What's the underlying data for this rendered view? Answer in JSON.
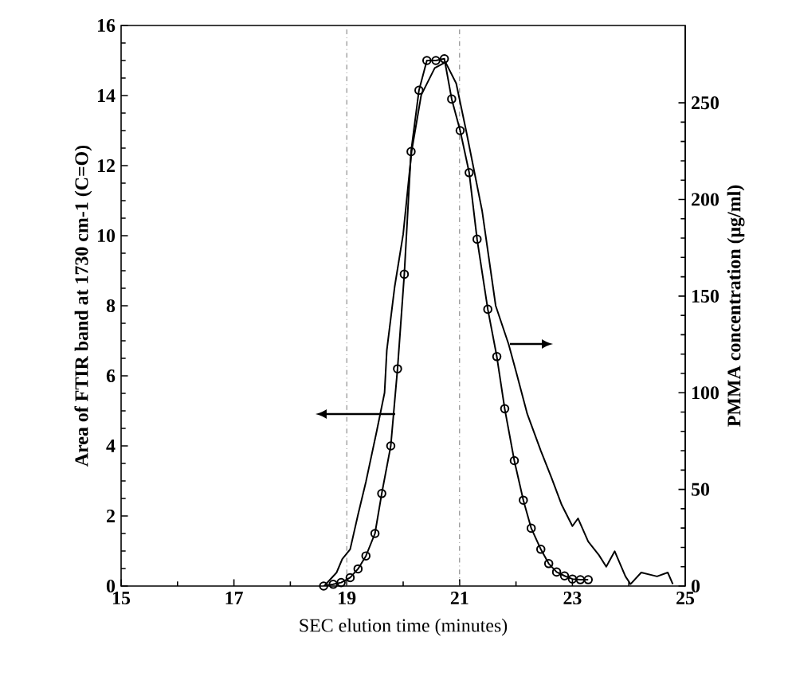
{
  "chart_data": {
    "type": "line",
    "xlabel": "SEC elution time (minutes)",
    "ylabel": "Area of FTIR band at 1730 cm-1 (C=O)",
    "y2label": "PMMA concentration (μg/ml)",
    "xlim": [
      15,
      25
    ],
    "xticks": [
      15,
      17,
      19,
      21,
      23,
      25
    ],
    "ylim": [
      0,
      16
    ],
    "yticks": [
      0,
      2,
      4,
      6,
      8,
      10,
      12,
      14,
      16
    ],
    "y2lim": [
      0,
      290
    ],
    "y2ticks": [
      0,
      50,
      100,
      150,
      200,
      250
    ],
    "grid": false,
    "ref_lines": [
      {
        "axis": "x",
        "value": 19,
        "line_style": "dotted",
        "color": "#555555"
      },
      {
        "axis": "x",
        "value": 21,
        "line_style": "dotted",
        "color": "#555555"
      }
    ],
    "series": [
      {
        "color": "#000000",
        "marker": "circle",
        "axis": "y",
        "x": [
          18.59,
          18.76,
          18.9,
          19.06,
          19.2,
          19.34,
          19.5,
          19.62,
          19.78,
          19.9,
          20.02,
          20.14,
          20.28,
          20.42,
          20.58,
          20.73,
          20.86,
          21.01,
          21.17,
          21.31,
          21.5,
          21.66,
          21.8,
          21.97,
          22.13,
          22.27,
          22.44,
          22.58,
          22.72,
          22.86,
          23.0,
          23.14,
          23.28
        ],
        "values": [
          0,
          0.05,
          0.1,
          0.24,
          0.49,
          0.86,
          1.5,
          2.64,
          4.0,
          6.2,
          8.9,
          12.4,
          14.15,
          15.0,
          15.0,
          15.05,
          13.9,
          13.0,
          11.8,
          9.9,
          7.9,
          6.55,
          5.06,
          3.58,
          2.45,
          1.65,
          1.05,
          0.64,
          0.4,
          0.29,
          0.2,
          0.18,
          0.18
        ]
      },
      {
        "color": "#000000",
        "marker": "none",
        "axis": "y2",
        "x": [
          18.6,
          18.82,
          18.92,
          19.06,
          19.2,
          19.34,
          19.53,
          19.67,
          19.71,
          19.85,
          20.0,
          20.15,
          20.32,
          20.56,
          20.75,
          20.94,
          21.12,
          21.4,
          21.64,
          21.87,
          22.01,
          22.2,
          22.44,
          22.63,
          22.81,
          23.0,
          23.1,
          23.28,
          23.47,
          23.6,
          23.75,
          23.94,
          24.03,
          24.22,
          24.5,
          24.69,
          24.78
        ],
        "values": [
          0,
          7,
          14,
          19,
          37,
          54,
          80,
          100,
          122,
          155,
          182,
          225,
          254,
          268,
          271,
          260,
          235,
          194,
          145,
          125,
          110,
          89,
          70,
          56,
          42,
          31,
          35,
          23,
          16,
          10,
          18,
          5,
          1,
          7,
          5,
          7,
          1
        ]
      }
    ]
  }
}
